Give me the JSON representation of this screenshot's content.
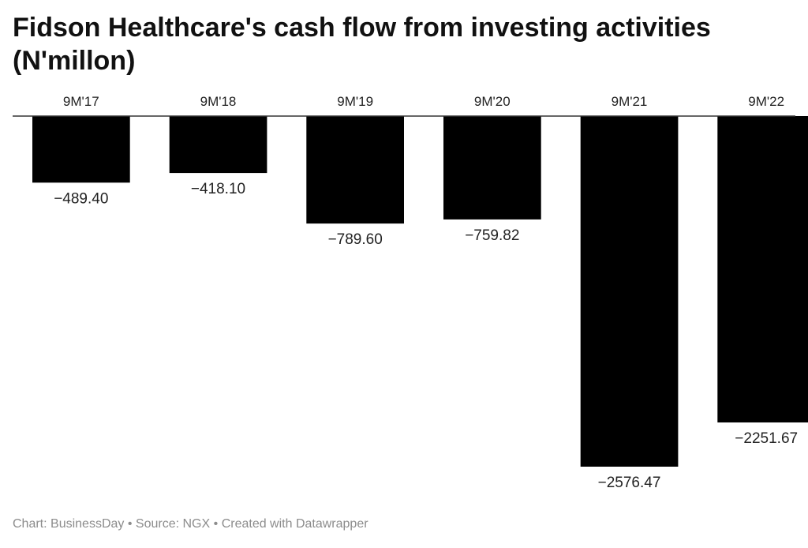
{
  "footer": {
    "chart_credit": "Chart: BusinessDay",
    "source": "Source: NGX",
    "tool": "Created with Datawrapper",
    "separator": "•"
  },
  "colors": {
    "bar": "#000000",
    "baseline": "#333333",
    "text": "#222222",
    "footer": "#8c8c8c"
  },
  "chart_data": {
    "type": "bar",
    "title": "Fidson Healthcare's cash flow from investing activities (N'millon)",
    "categories": [
      "9M'17",
      "9M'18",
      "9M'19",
      "9M'20",
      "9M'21",
      "9M'22"
    ],
    "values": [
      -489.4,
      -418.1,
      -789.6,
      -759.82,
      -2576.47,
      -2251.67
    ],
    "value_labels": [
      "−489.40",
      "−418.10",
      "−789.60",
      "−759.82",
      "−2576.47",
      "−2251.67"
    ],
    "xlabel": "",
    "ylabel": "",
    "ylim": [
      -2576.47,
      0
    ],
    "category_axis_position": "top",
    "grid": false,
    "legend": "none"
  }
}
